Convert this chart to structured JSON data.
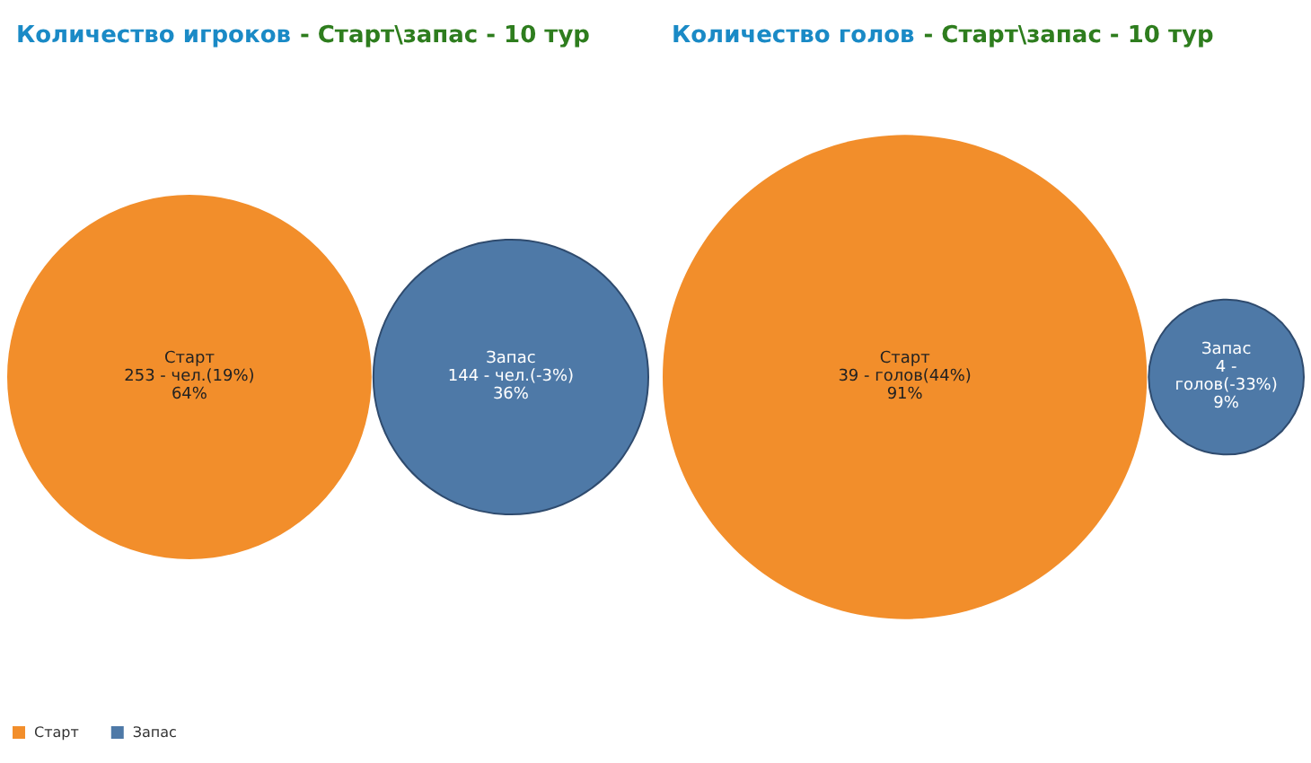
{
  "chart_data": [
    {
      "type": "other",
      "title": "Количество игроков",
      "subtitle": "- Старт\\запас - 10 тур",
      "legend": "bottom left",
      "series": [
        {
          "name": "Старт",
          "color": "#f28e2b",
          "values": [
            253
          ],
          "value_labels": [
            "253 - чел.(19%)\n64%"
          ]
        },
        {
          "name": "Запас",
          "color": "#4e79a7",
          "values": [
            144
          ],
          "value_labels": [
            "144 - чел.(-3%)\n36%"
          ]
        }
      ]
    },
    {
      "type": "other",
      "title": "Количество голов",
      "subtitle": "- Старт\\запас - 10 тур",
      "legend": false,
      "series": [
        {
          "name": "Старт",
          "color": "#f28e2b",
          "values": [
            39
          ],
          "value_labels": [
            "39 - голов(44%)\n91%"
          ]
        },
        {
          "name": "Запас",
          "color": "#4e79a7",
          "values": [
            4
          ],
          "value_labels": [
            "4 -\nголов(-33%)\n9%"
          ]
        }
      ]
    }
  ]
}
